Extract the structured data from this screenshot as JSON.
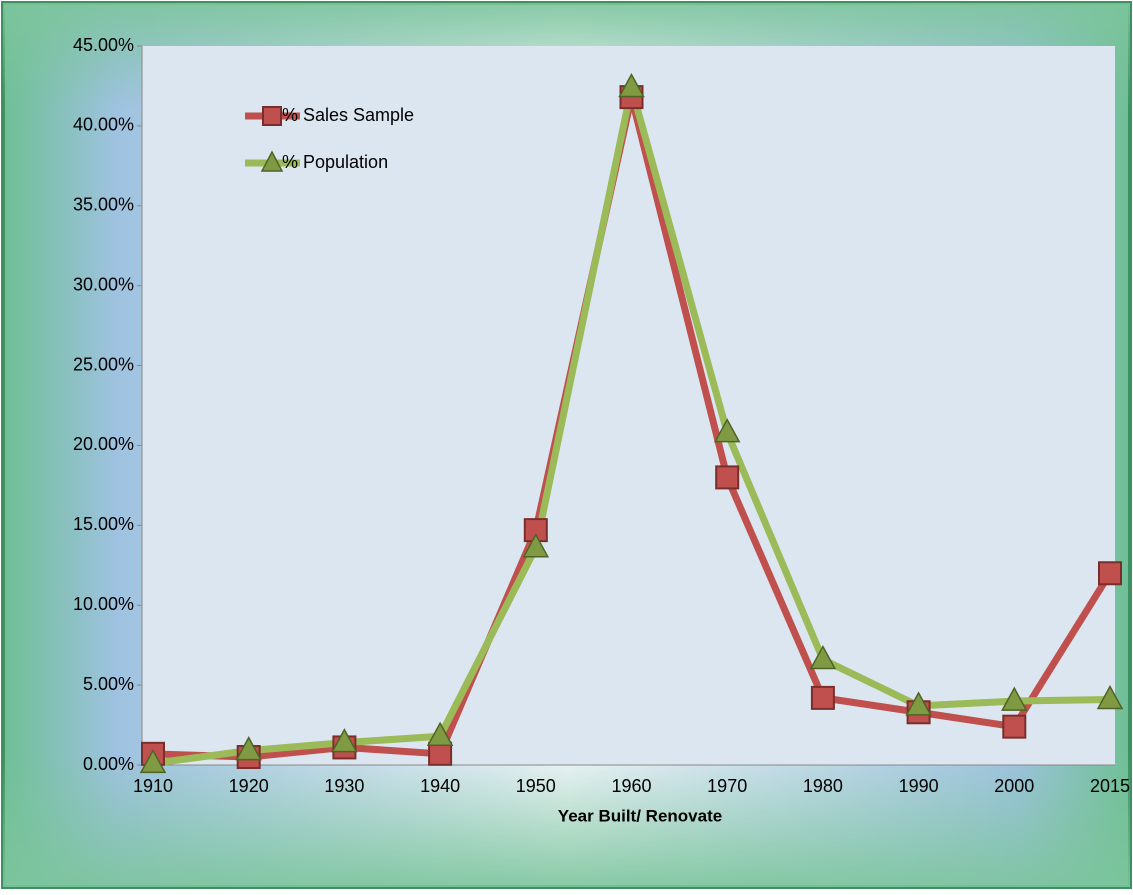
{
  "chart_data": {
    "type": "line",
    "xlabel": "Year Built/ Renovate",
    "categories": [
      "1910",
      "1920",
      "1930",
      "1940",
      "1950",
      "1960",
      "1970",
      "1980",
      "1990",
      "2000",
      "2015"
    ],
    "series": [
      {
        "name": "% Sales Sample",
        "color": "#c0504d",
        "marker": "square",
        "values": [
          0.7,
          0.5,
          1.1,
          0.7,
          14.7,
          41.8,
          18.0,
          4.2,
          3.3,
          2.4,
          12.0
        ]
      },
      {
        "name": "% Population",
        "color": "#9bbb59",
        "marker": "triangle",
        "values": [
          0.1,
          0.9,
          1.4,
          1.8,
          13.6,
          42.4,
          20.8,
          6.6,
          3.7,
          4.0,
          4.1
        ]
      }
    ],
    "ylim": [
      0,
      45
    ],
    "yticks": [
      {
        "value": 0,
        "label": "0.00%"
      },
      {
        "value": 5,
        "label": "5.00%"
      },
      {
        "value": 10,
        "label": "10.00%"
      },
      {
        "value": 15,
        "label": "15.00%"
      },
      {
        "value": 20,
        "label": "20.00%"
      },
      {
        "value": 25,
        "label": "25.00%"
      },
      {
        "value": 30,
        "label": "30.00%"
      },
      {
        "value": 35,
        "label": "35.00%"
      },
      {
        "value": 40,
        "label": "40.00%"
      },
      {
        "value": 45,
        "label": "45.00%"
      }
    ],
    "grid": false,
    "legend": "top-left"
  }
}
